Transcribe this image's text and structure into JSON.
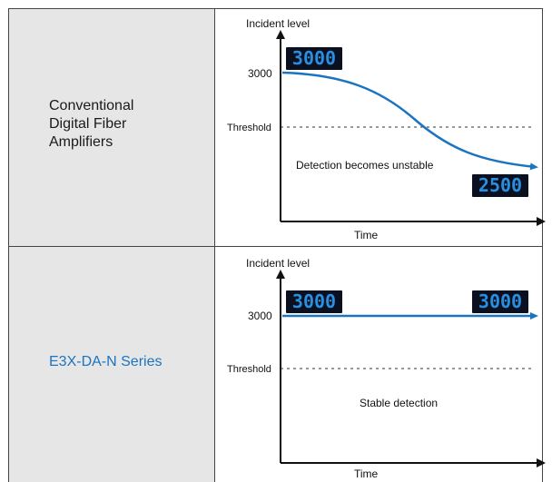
{
  "rows": [
    {
      "label": "Conventional Digital Fiber Amplifiers",
      "y_axis_label": "Incident level",
      "x_axis_label": "Time",
      "start_value_tick": "3000",
      "threshold_label": "Threshold",
      "annotation": "Detection becomes unstable",
      "display_start": "3000",
      "display_end": "2500"
    },
    {
      "label": "E3X-DA-N Series",
      "y_axis_label": "Incident level",
      "x_axis_label": "Time",
      "start_value_tick": "3000",
      "threshold_label": "Threshold",
      "annotation": "Stable detection",
      "display_start": "3000",
      "display_end": "3000"
    }
  ],
  "colors": {
    "curve": "#1b74c0",
    "label_cell_bg": "#e6e6e6",
    "series_label": "#1b74c0",
    "display_bg": "#0a1020",
    "display_digits": "#2b8fe0"
  }
}
